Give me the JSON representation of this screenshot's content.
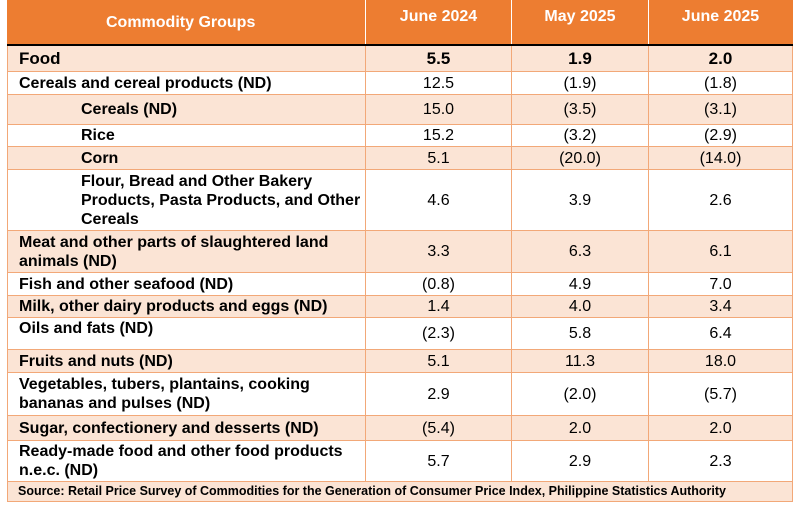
{
  "table": {
    "headers": [
      "Commodity Groups",
      "June 2024",
      "May 2025",
      "June 2025"
    ],
    "rows": [
      {
        "name": "Food",
        "values": [
          "5.5",
          "1.9",
          "2.0"
        ]
      },
      {
        "name": "Cereals and cereal products (ND)",
        "values": [
          "12.5",
          "(1.9)",
          "(1.8)"
        ]
      },
      {
        "name": "Cereals (ND)",
        "values": [
          "15.0",
          "(3.5)",
          "(3.1)"
        ]
      },
      {
        "name": "Rice",
        "values": [
          "15.2",
          "(3.2)",
          "(2.9)"
        ]
      },
      {
        "name": "Corn",
        "values": [
          "5.1",
          "(20.0)",
          "(14.0)"
        ]
      },
      {
        "name": "Flour, Bread and Other Bakery Products, Pasta Products, and Other Cereals",
        "values": [
          "4.6",
          "3.9",
          "2.6"
        ]
      },
      {
        "name": "Meat and other parts of slaughtered land animals (ND)",
        "values": [
          "3.3",
          "6.3",
          "6.1"
        ]
      },
      {
        "name": "Fish and other seafood (ND)",
        "values": [
          "(0.8)",
          "4.9",
          "7.0"
        ]
      },
      {
        "name": "Milk, other dairy products and eggs (ND)",
        "values": [
          "1.4",
          "4.0",
          "3.4"
        ]
      },
      {
        "name": "Oils and fats (ND)",
        "values": [
          "(2.3)",
          "5.8",
          "6.4"
        ]
      },
      {
        "name": "Fruits and nuts (ND)",
        "values": [
          "5.1",
          "11.3",
          "18.0"
        ]
      },
      {
        "name": "Vegetables, tubers, plantains, cooking bananas and pulses (ND)",
        "values": [
          "2.9",
          "(2.0)",
          "(5.7)"
        ]
      },
      {
        "name": "Sugar, confectionery and desserts (ND)",
        "values": [
          "(5.4)",
          "2.0",
          "2.0"
        ]
      },
      {
        "name": "Ready-made food and other food products n.e.c. (ND)",
        "values": [
          "5.7",
          "2.9",
          "2.3"
        ]
      }
    ],
    "source": "Source: Retail Price Survey of Commodities for the Generation of Consumer Price Index, Philippine Statistics Authority"
  },
  "colors": {
    "header_bg": "#ed7d31",
    "shade_bg": "#fbe4d5",
    "border": "#f2a878"
  }
}
